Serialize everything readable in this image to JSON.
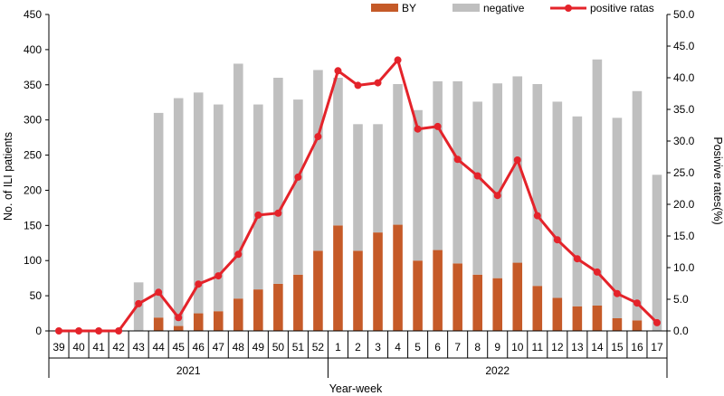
{
  "chart_data": {
    "type": "bar",
    "title": "",
    "categories": [
      "39",
      "40",
      "41",
      "42",
      "43",
      "44",
      "45",
      "46",
      "47",
      "48",
      "49",
      "50",
      "51",
      "52",
      "1",
      "2",
      "3",
      "4",
      "5",
      "6",
      "7",
      "8",
      "9",
      "10",
      "11",
      "12",
      "13",
      "14",
      "15",
      "16",
      "17"
    ],
    "year_groups": [
      {
        "label": "2021",
        "categories": [
          "39",
          "40",
          "41",
          "42",
          "43",
          "44",
          "45",
          "46",
          "47",
          "48",
          "49",
          "50",
          "51",
          "52"
        ]
      },
      {
        "label": "2022",
        "categories": [
          "1",
          "2",
          "3",
          "4",
          "5",
          "6",
          "7",
          "8",
          "9",
          "10",
          "11",
          "12",
          "13",
          "14",
          "15",
          "16",
          "17"
        ]
      }
    ],
    "series": [
      {
        "name": "BY",
        "type": "bar",
        "axis": "left",
        "color": "#c55a28",
        "values": [
          0,
          0,
          0,
          0,
          0,
          19,
          7,
          25,
          28,
          46,
          59,
          67,
          80,
          114,
          150,
          114,
          140,
          151,
          100,
          115,
          96,
          80,
          75,
          97,
          64,
          47,
          35,
          36,
          18,
          15,
          0
        ]
      },
      {
        "name": "negative",
        "type": "bar",
        "axis": "left",
        "color": "#bfbfbf",
        "stacked_on": "BY",
        "values": [
          0,
          0,
          0,
          0,
          69,
          291,
          324,
          314,
          294,
          334,
          263,
          293,
          249,
          257,
          210,
          180,
          154,
          200,
          214,
          240,
          259,
          246,
          277,
          265,
          287,
          279,
          270,
          350,
          285,
          326,
          222
        ]
      },
      {
        "name": "positive ratas",
        "type": "line",
        "axis": "right",
        "color": "#e4232a",
        "values": [
          0,
          0,
          0,
          0,
          4.3,
          6.1,
          2.1,
          7.4,
          8.7,
          12.1,
          18.3,
          18.6,
          24.3,
          30.7,
          41.1,
          38.8,
          39.2,
          42.8,
          31.9,
          32.3,
          27.1,
          24.5,
          21.4,
          27.0,
          18.2,
          14.4,
          11.4,
          9.3,
          5.9,
          4.4,
          1.3
        ]
      }
    ],
    "xlabel": "Year-week",
    "ylabel": "No. of ILI patients",
    "ylabel_right": "Posivive rates(%)",
    "ylim": [
      0,
      450
    ],
    "ylim_right": [
      0,
      50
    ],
    "yticks": [
      "0",
      "50",
      "100",
      "150",
      "200",
      "250",
      "300",
      "350",
      "400",
      "450"
    ],
    "yticks_right": [
      "0.0",
      "5.0",
      "10.0",
      "15.0",
      "20.0",
      "25.0",
      "30.0",
      "35.0",
      "40.0",
      "45.0",
      "50.0"
    ],
    "legend": [
      "BY",
      "negative",
      "positive ratas"
    ],
    "legend_position": "top-right",
    "grid": false
  }
}
